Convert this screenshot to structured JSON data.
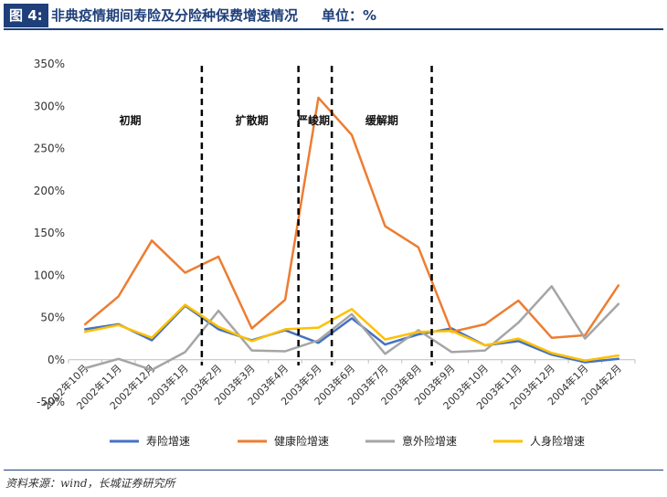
{
  "header": {
    "figure_label": "图 4:",
    "title": "非典疫情期间寿险及分险种保费增速情况",
    "unit": "单位：%"
  },
  "footer": {
    "source": "资料来源：wind，长城证券研究所"
  },
  "chart_data": {
    "type": "line",
    "categories": [
      "2002年10月",
      "2002年11月",
      "2002年12月",
      "2003年1月",
      "2003年2月",
      "2003年3月",
      "2003年4月",
      "2003年5月",
      "2003年6月",
      "2003年7月",
      "2003年8月",
      "2003年9月",
      "2003年10月",
      "2003年11月",
      "2003年12月",
      "2004年1月",
      "2004年2月"
    ],
    "ylim": [
      -50,
      350
    ],
    "yticks": [
      -50,
      0,
      50,
      100,
      150,
      200,
      250,
      300,
      350
    ],
    "ytick_labels": [
      "-50%",
      "0%",
      "50%",
      "100%",
      "150%",
      "200%",
      "250%",
      "300%",
      "350%"
    ],
    "grid": false,
    "legend_position": "bottom",
    "series": [
      {
        "name": "寿险增速",
        "color": "#4472c4",
        "values": [
          36,
          42,
          23,
          64,
          36,
          23,
          35,
          20,
          49,
          18,
          30,
          37,
          17,
          22,
          6,
          -3,
          1
        ]
      },
      {
        "name": "健康险增速",
        "color": "#ed7d31",
        "values": [
          42,
          75,
          141,
          103,
          122,
          37,
          71,
          310,
          266,
          158,
          133,
          33,
          42,
          70,
          26,
          29,
          88
        ]
      },
      {
        "name": "意外险增速",
        "color": "#a5a5a5",
        "values": [
          -10,
          1,
          -12,
          9,
          58,
          11,
          10,
          23,
          54,
          7,
          35,
          9,
          11,
          44,
          87,
          25,
          66
        ]
      },
      {
        "name": "人身险增速",
        "color": "#ffc000",
        "values": [
          33,
          41,
          26,
          65,
          39,
          22,
          36,
          38,
          60,
          24,
          33,
          34,
          17,
          25,
          8,
          -1,
          5
        ]
      }
    ],
    "phase_lines_after_index": [
      3.5,
      6.4,
      7.4,
      10.4
    ],
    "phases": [
      {
        "label": "初期",
        "x_index": 1.35,
        "y": 283
      },
      {
        "label": "扩散期",
        "x_index": 5.0,
        "y": 283
      },
      {
        "label": "严峻期",
        "x_index": 6.85,
        "y": 283
      },
      {
        "label": "缓解期",
        "x_index": 8.9,
        "y": 283
      }
    ]
  }
}
